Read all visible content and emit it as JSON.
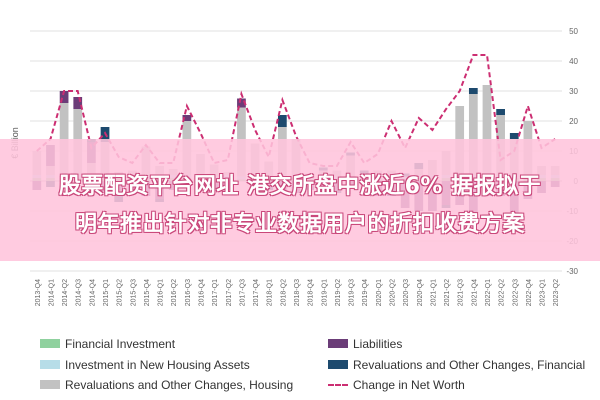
{
  "chart_data": {
    "type": "bar",
    "ylabel": "€ Billion",
    "ylim": [
      -30,
      50
    ],
    "yticks": [
      50,
      40,
      30,
      20,
      10,
      0,
      -10,
      -20,
      -30
    ],
    "grid": true,
    "legend_position": "bottom",
    "categories": [
      "2013-Q4",
      "2014-Q1",
      "2014-Q2",
      "2014-Q3",
      "2014-Q4",
      "2015-Q1",
      "2015-Q2",
      "2015-Q3",
      "2015-Q4",
      "2016-Q1",
      "2016-Q2",
      "2016-Q3",
      "2016-Q4",
      "2017-Q1",
      "2017-Q2",
      "2017-Q3",
      "2017-Q4",
      "2018-Q1",
      "2018-Q2",
      "2018-Q3",
      "2018-Q4",
      "2019-Q1",
      "2019-Q2",
      "2019-Q3",
      "2019-Q4",
      "2020-Q1",
      "2020-Q2",
      "2020-Q3",
      "2020-Q4",
      "2021-Q1",
      "2021-Q2",
      "2021-Q3",
      "2021-Q4",
      "2022-Q1",
      "2022-Q2",
      "2022-Q3",
      "2022-Q4",
      "2023-Q1",
      "2023-Q2"
    ],
    "series": [
      {
        "name": "Financial Investment",
        "color": "#8fd19e",
        "values": [
          1,
          1,
          1,
          1,
          1,
          1,
          1,
          0.5,
          0.5,
          1,
          1,
          1,
          1,
          0.5,
          1,
          0.5,
          0.5,
          0.5,
          1,
          1,
          0.5,
          0.5,
          0.5,
          0.5,
          0.5,
          0.5,
          0.5,
          0.5,
          1,
          1,
          1,
          1,
          1,
          1,
          1,
          1,
          1,
          1,
          1
        ]
      },
      {
        "name": "Investment in New Housing Assets",
        "color": "#b7dde8",
        "values": [
          1,
          1,
          1,
          1,
          1,
          1,
          1,
          1,
          1,
          1,
          1,
          1,
          1,
          1,
          1,
          1,
          1,
          1,
          1,
          1,
          1,
          1,
          1,
          1,
          1,
          1,
          1,
          1,
          1,
          1,
          1,
          1,
          1,
          1,
          1,
          1,
          1,
          1,
          1
        ]
      },
      {
        "name": "Revaluations and Other Changes, Housing",
        "color": "#c2c2c2",
        "values": [
          8,
          3,
          24,
          22,
          4,
          11,
          1,
          2,
          10,
          3,
          2,
          18,
          7,
          4,
          1,
          23,
          11,
          5,
          16,
          12,
          1,
          2,
          2,
          7,
          1,
          2,
          2,
          0,
          2,
          5,
          8,
          23,
          27,
          30,
          20,
          12,
          18,
          3,
          3
        ]
      },
      {
        "name": "Liabilities",
        "color": "#6b3d78",
        "values": [
          -3,
          7,
          4,
          4,
          7,
          -4,
          -4,
          -3,
          -5,
          -6,
          -3,
          2,
          -3,
          -2,
          -3,
          3,
          -3,
          -2,
          -3,
          -4,
          -2,
          -1,
          -3,
          -2,
          -1,
          -5,
          -3,
          -9,
          -10,
          -10,
          -8,
          -8,
          -12,
          -5,
          -5,
          -16,
          -6,
          -4,
          -2
        ]
      },
      {
        "name": "Revaluations and Other Changes, Financial",
        "color": "#1d4a6e",
        "values": [
          0,
          -2,
          0,
          0,
          1,
          5,
          -3,
          -1,
          0,
          -1,
          0,
          0,
          0,
          -1,
          0,
          0,
          0,
          -1,
          4,
          0,
          -1,
          1,
          -1,
          1,
          1,
          0,
          -2,
          1,
          2,
          0,
          -1,
          0,
          2,
          0,
          2,
          2,
          0,
          0,
          0
        ]
      }
    ],
    "net_series": {
      "name": "Change in Net Worth",
      "color": "#cc2e72",
      "values": [
        10,
        14,
        30,
        30,
        11,
        16,
        8,
        6,
        12,
        6,
        6,
        25,
        16,
        6,
        7,
        29,
        17,
        8,
        27,
        15,
        6,
        5,
        5,
        13,
        6,
        9,
        20,
        11,
        21,
        17,
        24,
        30,
        42,
        42,
        7,
        10,
        25,
        11,
        14
      ]
    }
  },
  "legend": [
    {
      "label": "Financial Investment"
    },
    {
      "label": "Liabilities"
    },
    {
      "label": "Investment in New Housing Assets"
    },
    {
      "label": "Revaluations and Other Changes, Financial"
    },
    {
      "label": "Revaluations and Other Changes, Housing"
    },
    {
      "label": "Change in Net Worth"
    }
  ],
  "overlay": {
    "line1": "股票配资平台网址 港交所盘中涨近6% 据报拟于",
    "line2": "明年推出针对非专业数据用户的折扣收费方案",
    "color": "#ffc4dc"
  }
}
